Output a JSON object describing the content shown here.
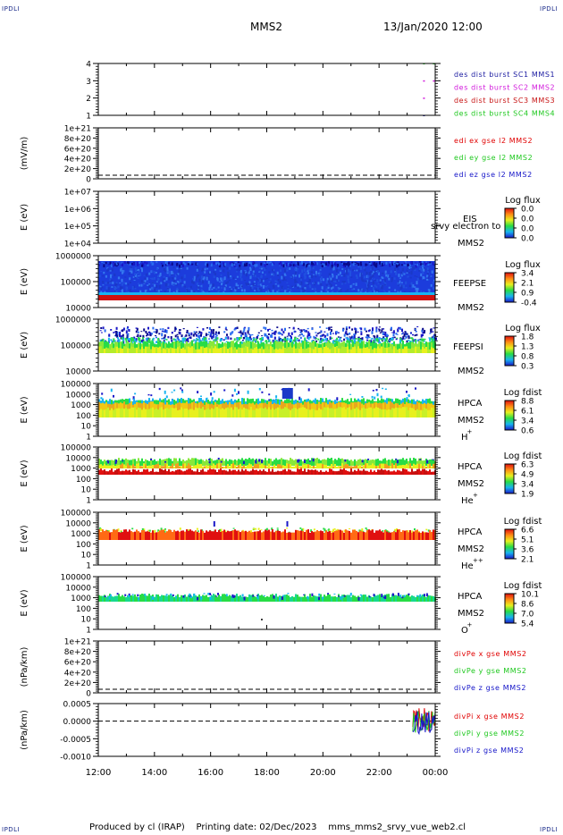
{
  "header": {
    "corner_label": "IPDLI",
    "spacecraft": "MMS2",
    "date_time": "13/Jan/2020 12:00"
  },
  "footer": {
    "text": "Produced by cl (IRAP)    Printing date: 02/Dec/2023    mms_mms2_srvy_vue_web2.cl"
  },
  "colors": {
    "frame": "#000000",
    "mms1": "#1a1aa0",
    "mms2": "#d21adc",
    "mms3": "#c81414",
    "mms4": "#1ec81e",
    "x_comp": "#e00000",
    "y_comp": "#1ec81e",
    "z_comp": "#1414c8"
  },
  "chart_data": {
    "type": "heatmap",
    "x_ticks": [
      "12:00",
      "14:00",
      "16:00",
      "18:00",
      "20:00",
      "22:00",
      "00:00"
    ],
    "panels": [
      {
        "id": "burst",
        "ylabel": "",
        "yticks": [
          "4",
          "3",
          "2",
          "1"
        ],
        "legend": [
          "des dist burst SC1 MMS1",
          "des dist burst SC2 MMS2",
          "des dist burst SC3 MMS3",
          "des dist burst SC4 MMS4"
        ],
        "marks": [
          {
            "series": 4,
            "time_h": 11.6,
            "level": 4
          },
          {
            "series": 2,
            "time_h": 11.6,
            "level": 3
          },
          {
            "series": 2,
            "time_h": 11.6,
            "level": 2
          },
          {
            "series": 1,
            "time_h": 11.6,
            "level": 1
          },
          {
            "series": 4,
            "time_h": 11.95,
            "level": 4
          },
          {
            "series": 2,
            "time_h": 11.95,
            "level": 3
          }
        ]
      },
      {
        "id": "edi",
        "ylabel": "(mV/m)",
        "yticks": [
          "1e+21",
          "8e+20",
          "6e+20",
          "4e+20",
          "2e+20",
          "0"
        ],
        "legend": [
          "edi ex gse l2 MMS2",
          "edi ey gse l2 MMS2",
          "edi ez gse l2 MMS2"
        ]
      },
      {
        "id": "eis",
        "ylabel": "E (eV)",
        "yticks": [
          "1e+07",
          "1e+06",
          "1e+05",
          "1e+04"
        ],
        "side": [
          "EIS",
          "MMS2"
        ],
        "overlay": "srvy electron to",
        "cbar_title": "Log flux",
        "cbar_ticks": [
          "0.0",
          "0.0",
          "0.0",
          "0.0"
        ]
      },
      {
        "id": "feepse",
        "ylabel": "E (eV)",
        "yticks": [
          "1000000",
          "100000",
          "10000"
        ],
        "side": [
          "FEEPSE",
          "MMS2"
        ],
        "cbar_title": "Log flux",
        "cbar_ticks": [
          "3.4",
          "2.1",
          "0.9",
          "-0.4"
        ]
      },
      {
        "id": "feepsi",
        "ylabel": "E (eV)",
        "yticks": [
          "1000000",
          "100000",
          "10000"
        ],
        "side": [
          "FEEPSI",
          "MMS2"
        ],
        "cbar_title": "Log flux",
        "cbar_ticks": [
          "1.8",
          "1.3",
          "0.8",
          "0.3"
        ]
      },
      {
        "id": "hpca-h",
        "ylabel": "E (eV)",
        "yticks": [
          "100000",
          "10000",
          "1000",
          "100",
          "10",
          "1"
        ],
        "side": [
          "HPCA",
          "MMS2"
        ],
        "species": [
          "H",
          "+"
        ],
        "cbar_title": "Log fdist",
        "cbar_ticks": [
          "8.8",
          "6.1",
          "3.4",
          "0.6"
        ]
      },
      {
        "id": "hpca-he1",
        "ylabel": "E (eV)",
        "yticks": [
          "100000",
          "10000",
          "1000",
          "100",
          "10",
          "1"
        ],
        "side": [
          "HPCA",
          "MMS2"
        ],
        "species": [
          "He",
          "+"
        ],
        "cbar_title": "Log fdist",
        "cbar_ticks": [
          "6.3",
          "4.9",
          "3.4",
          "1.9"
        ]
      },
      {
        "id": "hpca-he2",
        "ylabel": "E (eV)",
        "yticks": [
          "100000",
          "10000",
          "1000",
          "100",
          "10",
          "1"
        ],
        "side": [
          "HPCA",
          "MMS2"
        ],
        "species": [
          "He",
          "++"
        ],
        "cbar_title": "Log fdist",
        "cbar_ticks": [
          "6.6",
          "5.1",
          "3.6",
          "2.1"
        ]
      },
      {
        "id": "hpca-o",
        "ylabel": "E (eV)",
        "yticks": [
          "100000",
          "10000",
          "1000",
          "100",
          "10",
          "1"
        ],
        "side": [
          "HPCA",
          "MMS2"
        ],
        "species": [
          "O",
          "+"
        ],
        "cbar_title": "Log fdist",
        "cbar_ticks": [
          "10.1",
          "8.6",
          "7.0",
          "5.4"
        ]
      },
      {
        "id": "divpe",
        "ylabel": "(nPa/km)",
        "yticks": [
          "1e+21",
          "8e+20",
          "6e+20",
          "4e+20",
          "2e+20",
          "0"
        ],
        "legend": [
          "divPe x gse MMS2",
          "divPe y gse MMS2",
          "divPe z gse MMS2"
        ]
      },
      {
        "id": "divpi",
        "ylabel": "(nPa/km)",
        "yticks": [
          "0.0005",
          "0.0000",
          "-0.0005",
          "-0.0010"
        ],
        "legend": [
          "divPi x gse MMS2",
          "divPi y gse MMS2",
          "divPi z gse MMS2"
        ]
      }
    ]
  }
}
